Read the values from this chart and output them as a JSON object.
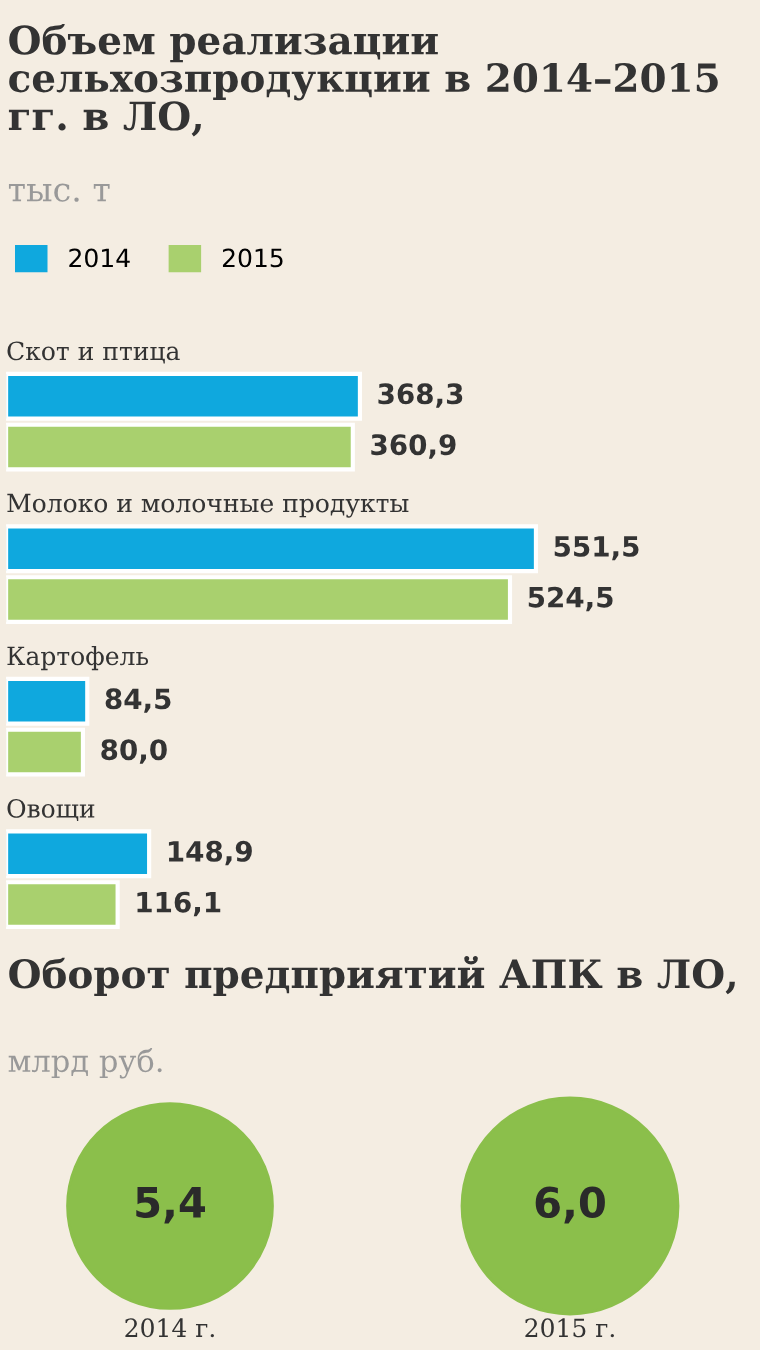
{
  "chart_data": [
    {
      "type": "bar",
      "orientation": "horizontal",
      "title": "Объем реализации сельхозпродукции в 2014–2015 гг. в ЛО,",
      "subtitle": "тыс. т",
      "categories": [
        "Скот и птица",
        "Молоко и молочные продукты",
        "Картофель",
        "Овощи"
      ],
      "series": [
        {
          "name": "2014",
          "color": "#0fa8de",
          "values": [
            368.3,
            551.5,
            84.5,
            148.9
          ],
          "value_labels": [
            "368,3",
            "551,5",
            "84,5",
            "148,9"
          ]
        },
        {
          "name": "2015",
          "color": "#a9d06e",
          "values": [
            360.9,
            524.5,
            80.0,
            116.1
          ],
          "value_labels": [
            "360,9",
            "524,5",
            "80,0",
            "116,1"
          ]
        }
      ],
      "legend": "top left"
    },
    {
      "type": "other",
      "title": "Оборот предприятий АПК в ЛО,",
      "subtitle": "млрд руб.",
      "categories": [
        "2014 г.",
        "2015 г."
      ],
      "values": [
        5.4,
        6.0
      ],
      "value_labels": [
        "5,4",
        "6,0"
      ],
      "color": "#8bbf4b"
    }
  ]
}
